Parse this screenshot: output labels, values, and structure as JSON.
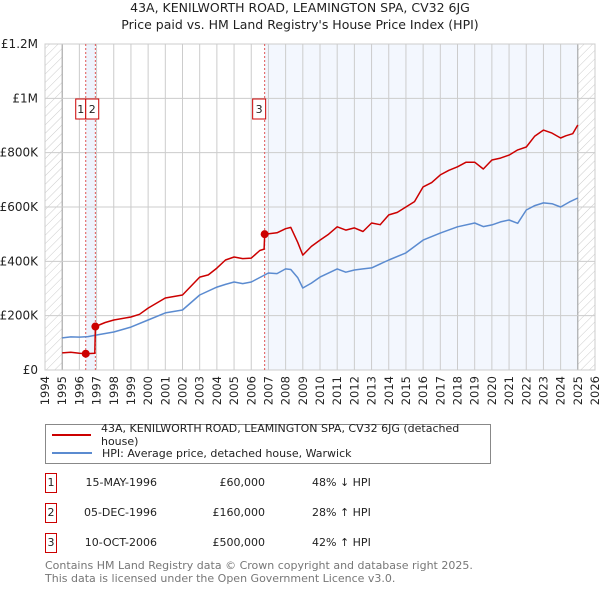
{
  "header": {
    "title": "43A, KENILWORTH ROAD, LEAMINGTON SPA, CV32 6JG",
    "subtitle": "Price paid vs. HM Land Registry's House Price Index (HPI)"
  },
  "chart_data": {
    "type": "line",
    "title": "43A, KENILWORTH ROAD, LEAMINGTON SPA, CV32 6JG — Price paid vs. HM Land Registry's House Price Index (HPI)",
    "xlim": [
      1994,
      2026
    ],
    "ylim": [
      0,
      1200000
    ],
    "x_ticks": [
      "1994",
      "1995",
      "1996",
      "1997",
      "1998",
      "1999",
      "2000",
      "2001",
      "2002",
      "2003",
      "2004",
      "2005",
      "2006",
      "2007",
      "2008",
      "2009",
      "2010",
      "2011",
      "2012",
      "2013",
      "2014",
      "2015",
      "2016",
      "2017",
      "2018",
      "2019",
      "2020",
      "2021",
      "2022",
      "2023",
      "2024",
      "2025",
      "2026"
    ],
    "y_ticks": [
      {
        "v": 0,
        "label": "£0"
      },
      {
        "v": 200000,
        "label": "£200K"
      },
      {
        "v": 400000,
        "label": "£400K"
      },
      {
        "v": 600000,
        "label": "£600K"
      },
      {
        "v": 800000,
        "label": "£800K"
      },
      {
        "v": 1000000,
        "label": "£1M"
      },
      {
        "v": 1200000,
        "label": "£1.2M"
      }
    ],
    "grid": true,
    "series": [
      {
        "name": "43A, KENILWORTH ROAD, LEAMINGTON SPA, CV32 6JG (detached house)",
        "color": "#cc0000",
        "x": [
          1995,
          1995.5,
          1996,
          1996.37,
          1996.9,
          1996.93,
          1997.5,
          1998,
          1999,
          1999.5,
          2000,
          2001,
          2002,
          2003,
          2003.5,
          2004,
          2004.5,
          2005,
          2005.5,
          2006,
          2006.5,
          2006.75,
          2006.78,
          2007.5,
          2008,
          2008.3,
          2008.7,
          2009,
          2009.5,
          2010,
          2010.5,
          2011,
          2011.5,
          2012,
          2012.5,
          2013,
          2013.5,
          2014,
          2014.5,
          2015,
          2015.5,
          2016,
          2016.5,
          2017,
          2017.5,
          2018,
          2018.5,
          2019,
          2019.5,
          2020,
          2020.5,
          2021,
          2021.5,
          2022,
          2022.5,
          2023,
          2023.5,
          2024,
          2024.3,
          2024.7,
          2025
        ],
        "y": [
          63000,
          65000,
          62000,
          60000,
          62000,
          160000,
          175000,
          184000,
          195000,
          205000,
          228000,
          265000,
          276000,
          342000,
          350000,
          375000,
          405000,
          416000,
          410000,
          412000,
          440000,
          445000,
          500000,
          505000,
          520000,
          525000,
          470000,
          423000,
          455000,
          478000,
          500000,
          527000,
          515000,
          523000,
          510000,
          541000,
          535000,
          571000,
          580000,
          600000,
          620000,
          674000,
          690000,
          718000,
          735000,
          748000,
          765000,
          765000,
          740000,
          773000,
          780000,
          791000,
          810000,
          821000,
          861000,
          883000,
          872000,
          854000,
          862000,
          870000,
          902000
        ]
      },
      {
        "name": "HPI: Average price, detached house, Warwick",
        "color": "#5b8bd0",
        "x": [
          1995,
          1995.5,
          1996,
          1996.5,
          1997,
          1998,
          1999,
          2000,
          2001,
          2002,
          2003,
          2004,
          2004.5,
          2005,
          2005.5,
          2006,
          2007,
          2007.5,
          2008,
          2008.3,
          2008.7,
          2009,
          2009.5,
          2010,
          2011,
          2011.5,
          2012,
          2012.5,
          2013,
          2014,
          2015,
          2016,
          2017,
          2018,
          2019,
          2019.5,
          2020,
          2020.5,
          2021,
          2021.5,
          2022,
          2022.5,
          2023,
          2023.5,
          2024,
          2024.5,
          2025
        ],
        "y": [
          118000,
          122000,
          121000,
          123000,
          129000,
          140000,
          158000,
          184000,
          210000,
          221000,
          276000,
          305000,
          315000,
          324000,
          318000,
          324000,
          357000,
          355000,
          372000,
          370000,
          340000,
          302000,
          320000,
          342000,
          372000,
          360000,
          368000,
          372000,
          376000,
          405000,
          431000,
          478000,
          504000,
          527000,
          541000,
          528000,
          534000,
          545000,
          552000,
          540000,
          589000,
          605000,
          615000,
          612000,
          600000,
          618000,
          633000
        ]
      }
    ],
    "sales": [
      {
        "label": "1",
        "x": 1996.37,
        "y": 60000
      },
      {
        "label": "2",
        "x": 1996.93,
        "y": 160000
      },
      {
        "label": "3",
        "x": 2006.78,
        "y": 500000
      }
    ],
    "legend_position": "bottom"
  },
  "legend": {
    "items": [
      {
        "label": "43A, KENILWORTH ROAD, LEAMINGTON SPA, CV32 6JG (detached house)",
        "color": "#cc0000"
      },
      {
        "label": "HPI: Average price, detached house, Warwick",
        "color": "#5b8bd0"
      }
    ]
  },
  "transactions": [
    {
      "num": "1",
      "date": "15-MAY-1996",
      "price": "£60,000",
      "hpi": "48% ↓ HPI"
    },
    {
      "num": "2",
      "date": "05-DEC-1996",
      "price": "£160,000",
      "hpi": "28% ↑ HPI"
    },
    {
      "num": "3",
      "date": "10-OCT-2006",
      "price": "£500,000",
      "hpi": "42% ↑ HPI"
    }
  ],
  "footer": {
    "line1": "Contains HM Land Registry data © Crown copyright and database right 2025.",
    "line2": "This data is licensed under the Open Government Licence v3.0."
  }
}
